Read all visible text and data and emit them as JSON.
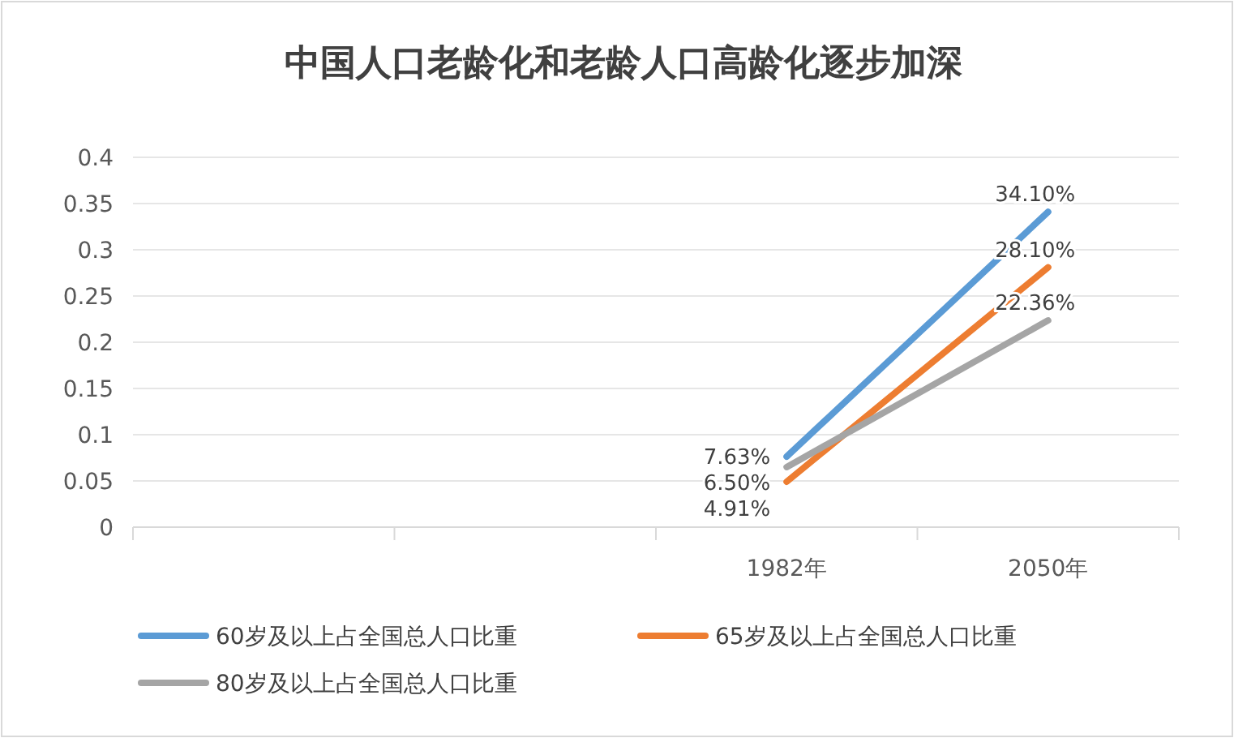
{
  "chart_data": {
    "type": "line",
    "title": "中国人口老龄化和老龄人口高龄化逐步加深",
    "categories": [
      null,
      null,
      "1982年",
      "2050年"
    ],
    "series": [
      {
        "name": "60岁及以上占全国总人口比重",
        "color": "#5b9bd5",
        "values": [
          null,
          null,
          0.0763,
          0.341
        ],
        "value_labels": [
          null,
          null,
          "7.63%",
          "34.10%"
        ]
      },
      {
        "name": "65岁及以上占全国总人口比重",
        "color": "#ed7d31",
        "values": [
          null,
          null,
          0.0491,
          0.281
        ],
        "value_labels": [
          null,
          null,
          "4.91%",
          "28.10%"
        ]
      },
      {
        "name": "80岁及以上占全国总人口比重",
        "color": "#a5a5a5",
        "values": [
          null,
          null,
          0.065,
          0.2236
        ],
        "value_labels": [
          null,
          null,
          "6.50%",
          "22.36%"
        ]
      }
    ],
    "ylim": [
      0,
      0.4
    ],
    "yticks": [
      0,
      0.05,
      0.1,
      0.15,
      0.2,
      0.25,
      0.3,
      0.35,
      0.4
    ],
    "grid": "y",
    "legend": "bottom",
    "marker": "none",
    "line_style": "solid"
  }
}
